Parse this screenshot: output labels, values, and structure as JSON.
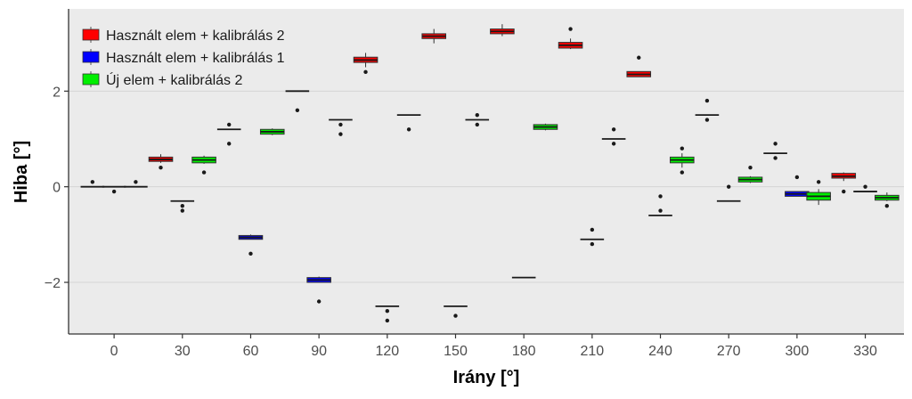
{
  "chart_data": {
    "type": "boxplot",
    "xlabel": "Irány [°]",
    "ylabel": "Hiba [°]",
    "x_ticks": [
      0,
      30,
      60,
      90,
      120,
      150,
      180,
      210,
      240,
      270,
      300,
      330
    ],
    "y_ticks": [
      -2,
      0,
      2
    ],
    "y_tick_labels": [
      "−2",
      "0",
      "2"
    ],
    "ylim": [
      -3.08,
      3.72
    ],
    "xlim": [
      -20,
      347
    ],
    "grid": true,
    "legend_position": "top-left",
    "series": [
      {
        "name": "Használt elem + kalibrálás 2",
        "color": "#ff0000",
        "boxes": [
          {
            "x": 0,
            "q1": 0,
            "median": 0,
            "q3": 0,
            "low": 0,
            "high": 0,
            "outliers": [
              0.1
            ]
          },
          {
            "x": 30,
            "q1": 0.53,
            "median": 0.57,
            "q3": 0.62,
            "low": 0.5,
            "high": 0.68,
            "outliers": [
              0.4
            ]
          },
          {
            "x": 60,
            "q1": 1.2,
            "median": 1.2,
            "q3": 1.2,
            "low": 1.2,
            "high": 1.2,
            "outliers": [
              1.3,
              0.9
            ]
          },
          {
            "x": 90,
            "q1": 2.0,
            "median": 2.0,
            "q3": 2.0,
            "low": 2.0,
            "high": 2.0,
            "outliers": [
              1.6
            ]
          },
          {
            "x": 120,
            "q1": 2.6,
            "median": 2.65,
            "q3": 2.71,
            "low": 2.5,
            "high": 2.8,
            "outliers": [
              2.4
            ]
          },
          {
            "x": 150,
            "q1": 3.1,
            "median": 3.15,
            "q3": 3.2,
            "low": 3.0,
            "high": 3.3,
            "outliers": []
          },
          {
            "x": 180,
            "q1": 3.2,
            "median": 3.25,
            "q3": 3.3,
            "low": 3.15,
            "high": 3.4,
            "outliers": []
          },
          {
            "x": 210,
            "q1": 2.9,
            "median": 2.96,
            "q3": 3.02,
            "low": 2.88,
            "high": 3.1,
            "outliers": [
              3.3
            ]
          },
          {
            "x": 240,
            "q1": 2.3,
            "median": 2.35,
            "q3": 2.41,
            "low": 2.3,
            "high": 2.41,
            "outliers": [
              2.7
            ]
          },
          {
            "x": 270,
            "q1": 1.5,
            "median": 1.5,
            "q3": 1.5,
            "low": 1.5,
            "high": 1.5,
            "outliers": [
              1.8,
              1.4
            ]
          },
          {
            "x": 300,
            "q1": 0.7,
            "median": 0.7,
            "q3": 0.7,
            "low": 0.7,
            "high": 0.7,
            "outliers": [
              0.9,
              0.6
            ]
          },
          {
            "x": 330,
            "q1": 0.18,
            "median": 0.22,
            "q3": 0.28,
            "low": 0.12,
            "high": 0.3,
            "outliers": [
              -0.1
            ]
          }
        ]
      },
      {
        "name": "Használt elem + kalibrálás 1",
        "color": "#0000ff",
        "boxes": [
          {
            "x": 0,
            "q1": 0,
            "median": 0,
            "q3": 0,
            "low": 0,
            "high": 0,
            "outliers": [
              -0.1
            ]
          },
          {
            "x": 30,
            "q1": -0.3,
            "median": -0.3,
            "q3": -0.3,
            "low": -0.3,
            "high": -0.3,
            "outliers": [
              -0.4,
              -0.5
            ]
          },
          {
            "x": 60,
            "q1": -1.1,
            "median": -1.06,
            "q3": -1.02,
            "low": -1.1,
            "high": -1.0,
            "outliers": [
              -1.4
            ]
          },
          {
            "x": 90,
            "q1": -2.0,
            "median": -1.95,
            "q3": -1.9,
            "low": -2.0,
            "high": -1.88,
            "outliers": [
              -2.4
            ]
          },
          {
            "x": 120,
            "q1": -2.5,
            "median": -2.5,
            "q3": -2.5,
            "low": -2.5,
            "high": -2.5,
            "outliers": [
              -2.6,
              -2.8
            ]
          },
          {
            "x": 150,
            "q1": -2.5,
            "median": -2.5,
            "q3": -2.5,
            "low": -2.5,
            "high": -2.5,
            "outliers": [
              -2.7
            ]
          },
          {
            "x": 180,
            "q1": -1.9,
            "median": -1.9,
            "q3": -1.9,
            "low": -1.9,
            "high": -1.9,
            "outliers": []
          },
          {
            "x": 210,
            "q1": -1.1,
            "median": -1.1,
            "q3": -1.1,
            "low": -1.1,
            "high": -1.1,
            "outliers": [
              -0.9,
              -1.2
            ]
          },
          {
            "x": 240,
            "q1": -0.6,
            "median": -0.6,
            "q3": -0.6,
            "low": -0.6,
            "high": -0.6,
            "outliers": [
              -0.2,
              -0.5
            ]
          },
          {
            "x": 270,
            "q1": -0.3,
            "median": -0.3,
            "q3": -0.3,
            "low": -0.3,
            "high": -0.3,
            "outliers": [
              0.0
            ]
          },
          {
            "x": 300,
            "q1": -0.2,
            "median": -0.15,
            "q3": -0.1,
            "low": -0.2,
            "high": -0.1,
            "outliers": [
              0.2
            ]
          },
          {
            "x": 330,
            "q1": -0.1,
            "median": -0.1,
            "q3": -0.1,
            "low": -0.1,
            "high": -0.1,
            "outliers": [
              0.0
            ]
          }
        ]
      },
      {
        "name": "Új elem + kalibrálás 2",
        "color": "#00ee00",
        "boxes": [
          {
            "x": 0,
            "q1": 0,
            "median": 0,
            "q3": 0,
            "low": 0,
            "high": 0,
            "outliers": [
              0.1
            ]
          },
          {
            "x": 30,
            "q1": 0.5,
            "median": 0.56,
            "q3": 0.62,
            "low": 0.48,
            "high": 0.65,
            "outliers": [
              0.3
            ]
          },
          {
            "x": 60,
            "q1": 1.1,
            "median": 1.15,
            "q3": 1.2,
            "low": 1.08,
            "high": 1.22,
            "outliers": []
          },
          {
            "x": 90,
            "q1": 1.4,
            "median": 1.4,
            "q3": 1.4,
            "low": 1.4,
            "high": 1.4,
            "outliers": [
              1.3,
              1.1
            ]
          },
          {
            "x": 120,
            "q1": 1.5,
            "median": 1.5,
            "q3": 1.5,
            "low": 1.5,
            "high": 1.5,
            "outliers": [
              1.2
            ]
          },
          {
            "x": 150,
            "q1": 1.4,
            "median": 1.4,
            "q3": 1.4,
            "low": 1.4,
            "high": 1.4,
            "outliers": [
              1.5,
              1.3
            ]
          },
          {
            "x": 180,
            "q1": 1.2,
            "median": 1.25,
            "q3": 1.3,
            "low": 1.18,
            "high": 1.32,
            "outliers": []
          },
          {
            "x": 210,
            "q1": 1.0,
            "median": 1.0,
            "q3": 1.0,
            "low": 1.0,
            "high": 1.0,
            "outliers": [
              1.2,
              0.9
            ]
          },
          {
            "x": 240,
            "q1": 0.5,
            "median": 0.56,
            "q3": 0.62,
            "low": 0.4,
            "high": 0.7,
            "outliers": [
              0.8,
              0.3
            ]
          },
          {
            "x": 270,
            "q1": 0.1,
            "median": 0.15,
            "q3": 0.2,
            "low": 0.08,
            "high": 0.22,
            "outliers": [
              0.4
            ]
          },
          {
            "x": 300,
            "q1": -0.28,
            "median": -0.2,
            "q3": -0.12,
            "low": -0.38,
            "high": -0.05,
            "outliers": [
              0.1
            ]
          },
          {
            "x": 330,
            "q1": -0.28,
            "median": -0.23,
            "q3": -0.18,
            "low": -0.3,
            "high": -0.12,
            "outliers": [
              -0.4
            ]
          }
        ]
      }
    ]
  }
}
